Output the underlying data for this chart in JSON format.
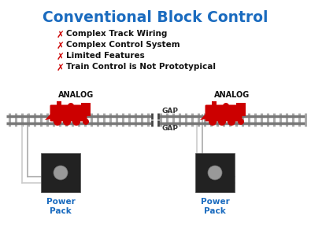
{
  "title": "Conventional Block Control",
  "title_color": "#1a6bbf",
  "title_fontsize": 13.5,
  "bg_color": "#ffffff",
  "bullet_color": "#cc0000",
  "bullet_x_marker": "✗",
  "bullets": [
    "Complex Track Wiring",
    "Complex Control System",
    "Limited Features",
    "Train Control is Not Prototypical"
  ],
  "bullet_fontsize": 7.5,
  "analog_label": "ANALOG",
  "analog_color": "#111111",
  "gap_label": "GAP",
  "gap_color": "#333333",
  "track_color": "#aaaaaa",
  "rail_color": "#777777",
  "train_color": "#cc0000",
  "power_pack_color": "#222222",
  "power_pack_knob_color": "#999999",
  "power_pack_label": "Power\nPack",
  "power_pack_label_color": "#1a6bbf",
  "wire_color": "#cccccc",
  "wire_color2": "#aaaaaa"
}
